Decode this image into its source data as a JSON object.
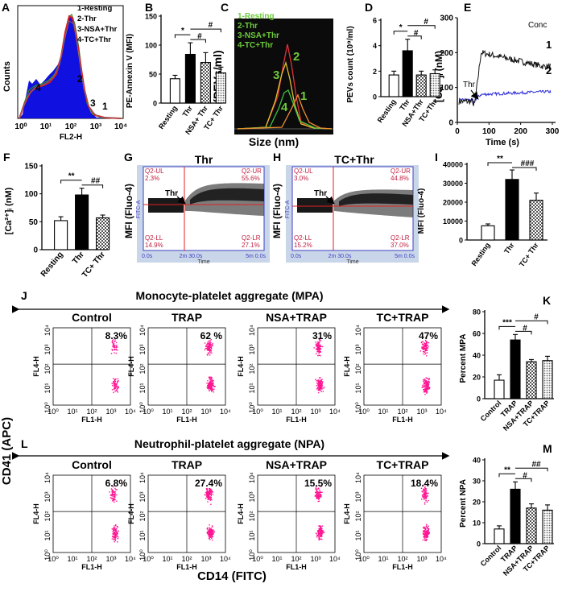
{
  "panel_letters": [
    "A",
    "B",
    "C",
    "D",
    "E",
    "F",
    "G",
    "H",
    "I",
    "J",
    "K",
    "L",
    "M"
  ],
  "colors": {
    "magenta": "#ff1493",
    "flow_bg": "#c9d6ea",
    "dark_bg": "#0b0b0b",
    "green_text": "#6ecb3c",
    "blue_trace": "#2a2ad6"
  },
  "panel_a": {
    "ylabel": "Counts",
    "xlabel": "FL2-H",
    "xticks": [
      "10⁰",
      "10¹",
      "10²",
      "10³",
      "10⁴"
    ],
    "legend": [
      "1-Resting",
      "2-Thr",
      "3-NSA+Thr",
      "4-TC+Thr"
    ],
    "curve_labels": [
      "4",
      "2",
      "3",
      "1"
    ]
  },
  "panel_c": {
    "ylabel": "(PEVs/ml)",
    "xlabel": "Size (nm)",
    "legend": [
      "1-Resting",
      "2-Thr",
      "3-NSA+Thr",
      "4-TC+Thr"
    ],
    "curve_labels": [
      "2",
      "3",
      "4",
      "1"
    ]
  },
  "panel_e": {
    "title": "Conc",
    "ylabel": "[Ca²⁺]ᵢ (nM)",
    "xlabel": "Time (s)",
    "arrow_label": "Thr",
    "trace_labels": [
      "1",
      "2"
    ]
  },
  "panel_g": {
    "title": "Thr",
    "ylabel": "MFI (Fluo-4)",
    "axis_label": "FITC-A",
    "time_label": "Time",
    "time_ticks": [
      "0.0s",
      "2m 30.0s",
      "5m 0.0s"
    ],
    "arrow_label": "Thr",
    "quadrants": [
      "Q2-UL",
      "2.3%",
      "Q2-UR",
      "55.6%",
      "Q2-LL",
      "14.9%",
      "Q2-LR",
      "27.1%"
    ]
  },
  "panel_h": {
    "title": "TC+Thr",
    "ylabel": "MFI (Fluo-4)",
    "axis_label": "FITC-A",
    "time_label": "Time",
    "time_ticks": [
      "0.0s",
      "2m 30.0s",
      "5m 0.0s"
    ],
    "arrow_label": "Thr",
    "quadrants": [
      "Q2-UL",
      "3.0%",
      "Q2-UR",
      "44.8%",
      "Q2-LL",
      "15.2%",
      "Q2-LR",
      "37.0%"
    ]
  },
  "flow": {
    "mpa_title": "Monocyte-platelet aggregate (MPA)",
    "npa_title": "Neutrophil-platelet aggregate (NPA)",
    "y_axis_title": "CD41 (APC)",
    "x_axis_title": "CD14 (FITC)",
    "plot_ylabel": "FL4-H",
    "plot_xlabel": "FL1-H",
    "ticks": [
      "10⁰",
      "10¹",
      "10²",
      "10³",
      "10⁴"
    ],
    "mpa_titles": [
      "Control",
      "TRAP",
      "NSA+TRAP",
      "TC+TRAP"
    ],
    "mpa_pcts": [
      "8.3%",
      "62 %",
      "31%",
      "47%"
    ],
    "npa_titles": [
      "Control",
      "TRAP",
      "NSA+TRAP",
      "TC+TRAP"
    ],
    "npa_pcts": [
      "6.8%",
      "27.4%",
      "15.5%",
      "18.4%"
    ]
  },
  "chart_data": [
    {
      "panel": "A",
      "type": "area",
      "title": "",
      "xlabel": "FL2-H",
      "ylabel": "Counts",
      "series": [
        {
          "name": "1-Resting"
        },
        {
          "name": "2-Thr"
        },
        {
          "name": "3-NSA+Thr"
        },
        {
          "name": "4-TC+Thr"
        }
      ],
      "xlim": [
        "10⁰",
        "10⁴"
      ],
      "xscale": "log"
    },
    {
      "panel": "B",
      "type": "bar",
      "ylabel": "PE-Annexin V (MFI)",
      "categories": [
        "Resting",
        "Thr",
        "NSA+ Thr",
        "TC+ Thr"
      ],
      "values": [
        42,
        84,
        70,
        52
      ],
      "errors": [
        6,
        20,
        17,
        10
      ],
      "ylim": [
        0,
        150
      ],
      "yticks": [
        "0",
        "50",
        "100",
        "150"
      ],
      "significance": [
        "*",
        "#",
        "#"
      ]
    },
    {
      "panel": "C",
      "type": "line",
      "xlabel": "Size (nm)",
      "ylabel": "(PEVs/ml)",
      "series": [
        {
          "name": "1-Resting"
        },
        {
          "name": "2-Thr"
        },
        {
          "name": "3-NSA+Thr"
        },
        {
          "name": "4-TC+Thr"
        }
      ]
    },
    {
      "panel": "D",
      "type": "bar",
      "ylabel": "PEVs count (10⁹/ml)",
      "categories": [
        "Resting",
        "Thr",
        "NSA+Thr",
        "TC+Thr"
      ],
      "values": [
        1.7,
        3.6,
        1.7,
        1.8
      ],
      "errors": [
        0.3,
        0.9,
        0.3,
        0.3
      ],
      "ylim": [
        0,
        6
      ],
      "yticks": [
        "0",
        "2",
        "4",
        "6"
      ],
      "significance": [
        "*",
        "#",
        "#"
      ]
    },
    {
      "panel": "E",
      "type": "line",
      "title": "Conc",
      "xlabel": "Time (s)",
      "ylabel": "[Ca²⁺]ᵢ (nM)",
      "xlim": [
        0,
        300
      ],
      "xticks": [
        "0",
        "100",
        "200",
        "300"
      ],
      "ylim": [
        0,
        300
      ],
      "yticks": [
        "0",
        "100",
        "200",
        "300"
      ],
      "series": [
        {
          "name": "1",
          "stim_s": 50,
          "baseline": 60,
          "peak": 200,
          "plateau": 160
        },
        {
          "name": "2",
          "stim_s": 50,
          "baseline": 65,
          "peak": 80,
          "plateau": 88
        }
      ]
    },
    {
      "panel": "F",
      "type": "bar",
      "ylabel": "[Ca²⁺]ᵢ (nM)",
      "categories": [
        "Resting",
        "Thr",
        "TC+ Thr"
      ],
      "values": [
        52,
        98,
        57
      ],
      "errors": [
        7,
        12,
        5
      ],
      "ylim": [
        0,
        150
      ],
      "yticks": [
        "0",
        "50",
        "100",
        "150"
      ],
      "significance": [
        "**",
        "##"
      ]
    },
    {
      "panel": "I",
      "type": "bar",
      "ylabel": "MFI (Fluo-4)",
      "categories": [
        "Resting",
        "Thr",
        "TC+ Thr"
      ],
      "values": [
        7500,
        32000,
        21000
      ],
      "errors": [
        1000,
        5000,
        3800
      ],
      "ylim": [
        0,
        40000
      ],
      "yticks": [
        "0",
        "10000",
        "20000",
        "30000",
        "40000"
      ],
      "significance": [
        "**",
        "###"
      ]
    },
    {
      "panel": "K",
      "type": "bar",
      "ylabel": "Percent MPA",
      "categories": [
        "Control",
        "TRAP",
        "NSA+TRAP",
        "TC+TRAP"
      ],
      "values": [
        17,
        54,
        34,
        35
      ],
      "errors": [
        5,
        5,
        2,
        4
      ],
      "ylim": [
        0,
        80
      ],
      "yticks": [
        "0",
        "20",
        "40",
        "60",
        "80"
      ],
      "significance": [
        "***",
        "#",
        "#"
      ]
    },
    {
      "panel": "M",
      "type": "bar",
      "ylabel": "Percent NPA",
      "categories": [
        "Control",
        "TRAP",
        "NSA+TRAP",
        "TC+TRAP"
      ],
      "values": [
        7,
        26,
        17,
        16
      ],
      "errors": [
        1.5,
        3.5,
        2,
        2.5
      ],
      "ylim": [
        0,
        40
      ],
      "yticks": [
        "0",
        "10",
        "20",
        "30",
        "40"
      ],
      "significance": [
        "**",
        "#",
        "##"
      ]
    }
  ]
}
